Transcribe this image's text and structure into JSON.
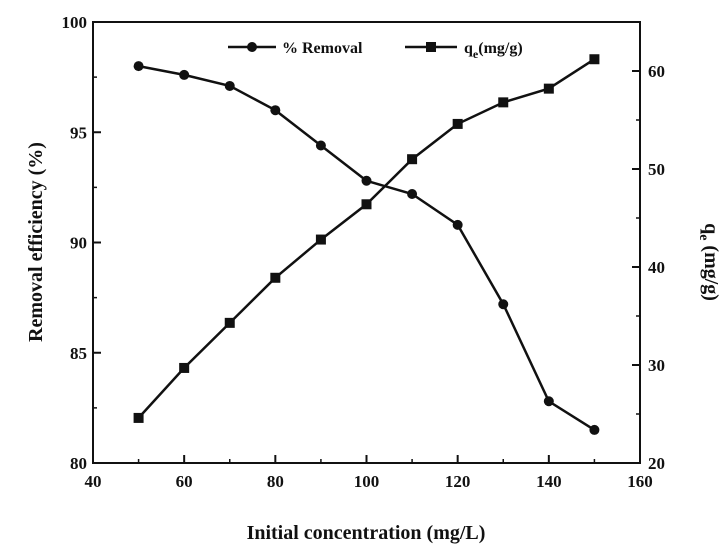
{
  "chart_data": {
    "type": "line",
    "xlabel": "Initial concentration (mg/L)",
    "ylabel_left": "Removal efficiency (%)",
    "ylabel_right": "qe (mg/g)",
    "xlim": [
      40,
      160
    ],
    "ylim_left": [
      80,
      100
    ],
    "ylim_right": [
      20,
      65
    ],
    "xticks": [
      40,
      60,
      80,
      100,
      120,
      140,
      160
    ],
    "yticks_left": [
      80,
      85,
      90,
      95,
      100
    ],
    "yticks_right": [
      20,
      30,
      40,
      50,
      60
    ],
    "x": [
      50,
      60,
      70,
      80,
      90,
      100,
      110,
      120,
      130,
      140,
      150
    ],
    "series": [
      {
        "name": "% Removal",
        "axis": "left",
        "marker": "circle",
        "values": [
          98.0,
          97.6,
          97.1,
          96.0,
          94.4,
          92.8,
          92.2,
          90.8,
          87.2,
          82.8,
          81.5
        ]
      },
      {
        "name": "qe(mg/g)",
        "axis": "right",
        "marker": "square",
        "values": [
          24.6,
          29.7,
          34.3,
          38.9,
          42.8,
          46.4,
          51.0,
          54.6,
          56.8,
          58.2,
          61.2
        ]
      }
    ],
    "grid": false,
    "legend_position": "top"
  }
}
